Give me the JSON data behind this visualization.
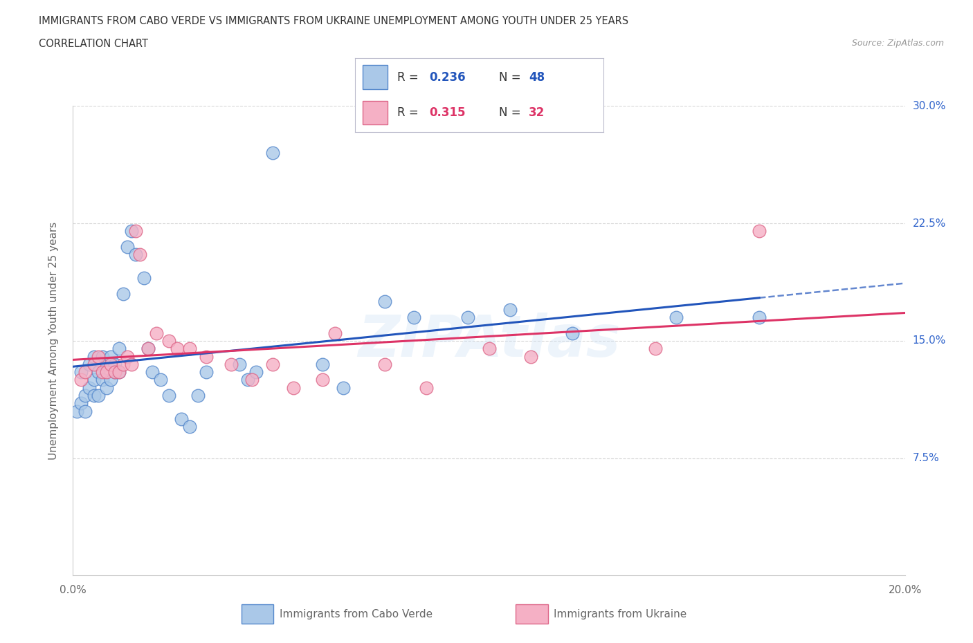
{
  "title_line1": "IMMIGRANTS FROM CABO VERDE VS IMMIGRANTS FROM UKRAINE UNEMPLOYMENT AMONG YOUTH UNDER 25 YEARS",
  "title_line2": "CORRELATION CHART",
  "source": "Source: ZipAtlas.com",
  "ylabel": "Unemployment Among Youth under 25 years",
  "watermark": "ZIPAtlas",
  "xmin": 0.0,
  "xmax": 0.2,
  "ymin": 0.0,
  "ymax": 0.3,
  "xticks": [
    0.0,
    0.05,
    0.1,
    0.15,
    0.2
  ],
  "yticks": [
    0.0,
    0.075,
    0.15,
    0.225,
    0.3
  ],
  "yticklabels": [
    "",
    "7.5%",
    "15.0%",
    "22.5%",
    "30.0%"
  ],
  "cabo_verde_color": "#aac8e8",
  "ukraine_color": "#f5b0c5",
  "cabo_verde_edge": "#5588cc",
  "ukraine_edge": "#dd6688",
  "trend_cabo_color": "#2255bb",
  "trend_ukraine_color": "#dd3366",
  "R_cabo": 0.236,
  "N_cabo": 48,
  "R_ukraine": 0.315,
  "N_ukraine": 32,
  "cabo_verde_label": "Immigrants from Cabo Verde",
  "ukraine_label": "Immigrants from Ukraine",
  "cabo_x": [
    0.001,
    0.002,
    0.002,
    0.003,
    0.003,
    0.004,
    0.004,
    0.005,
    0.005,
    0.005,
    0.006,
    0.006,
    0.007,
    0.007,
    0.008,
    0.008,
    0.009,
    0.009,
    0.01,
    0.01,
    0.011,
    0.011,
    0.012,
    0.013,
    0.014,
    0.015,
    0.017,
    0.018,
    0.019,
    0.021,
    0.023,
    0.026,
    0.028,
    0.03,
    0.032,
    0.04,
    0.042,
    0.044,
    0.048,
    0.06,
    0.065,
    0.075,
    0.082,
    0.095,
    0.105,
    0.12,
    0.145,
    0.165
  ],
  "cabo_y": [
    0.105,
    0.13,
    0.11,
    0.115,
    0.105,
    0.135,
    0.12,
    0.14,
    0.125,
    0.115,
    0.13,
    0.115,
    0.125,
    0.14,
    0.135,
    0.12,
    0.14,
    0.125,
    0.135,
    0.13,
    0.145,
    0.13,
    0.18,
    0.21,
    0.22,
    0.205,
    0.19,
    0.145,
    0.13,
    0.125,
    0.115,
    0.1,
    0.095,
    0.115,
    0.13,
    0.135,
    0.125,
    0.13,
    0.27,
    0.135,
    0.12,
    0.175,
    0.165,
    0.165,
    0.17,
    0.155,
    0.165,
    0.165
  ],
  "ukraine_x": [
    0.002,
    0.003,
    0.005,
    0.006,
    0.007,
    0.008,
    0.009,
    0.01,
    0.011,
    0.012,
    0.013,
    0.014,
    0.015,
    0.016,
    0.018,
    0.02,
    0.023,
    0.025,
    0.028,
    0.032,
    0.038,
    0.043,
    0.048,
    0.053,
    0.06,
    0.063,
    0.075,
    0.085,
    0.1,
    0.11,
    0.14,
    0.165
  ],
  "ukraine_y": [
    0.125,
    0.13,
    0.135,
    0.14,
    0.13,
    0.13,
    0.135,
    0.13,
    0.13,
    0.135,
    0.14,
    0.135,
    0.22,
    0.205,
    0.145,
    0.155,
    0.15,
    0.145,
    0.145,
    0.14,
    0.135,
    0.125,
    0.135,
    0.12,
    0.125,
    0.155,
    0.135,
    0.12,
    0.145,
    0.14,
    0.145,
    0.22
  ],
  "background_color": "#ffffff",
  "grid_color": "#cccccc",
  "legend_border_color": "#bbbbdd"
}
